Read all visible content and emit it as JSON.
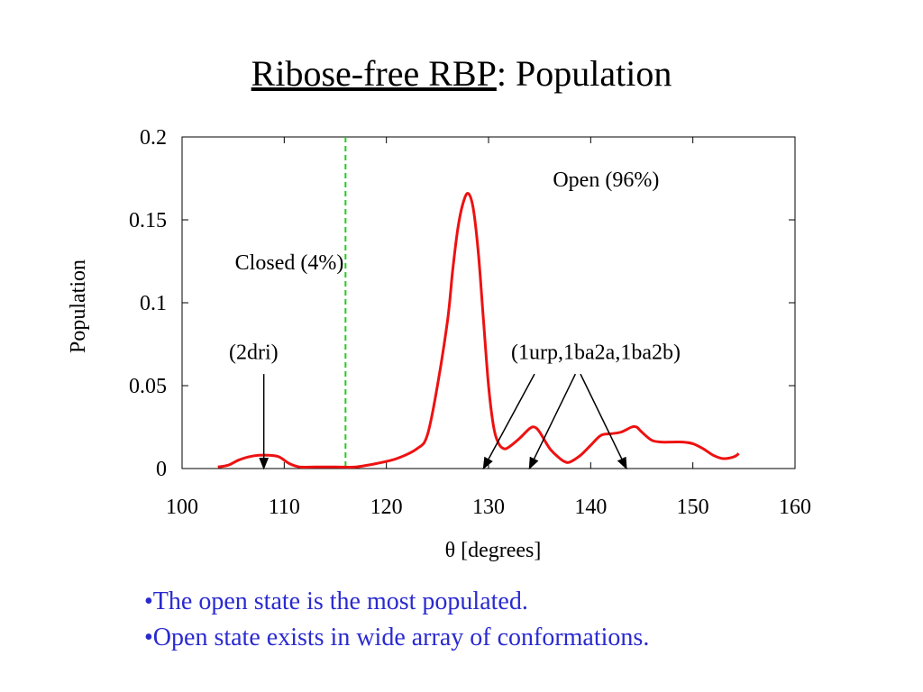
{
  "slide": {
    "title_underlined": "Ribose-free RBP",
    "title_rest": ": Population",
    "bullets": [
      "•The open state is the most populated.",
      "•Open state exists in wide array of conformations."
    ]
  },
  "colors": {
    "curve": "#ee1111",
    "threshold": "#22cc22",
    "bullet_text": "#2a2ad0"
  },
  "chart_data": {
    "type": "line",
    "xlabel": "θ [degrees]",
    "ylabel": "Population",
    "xlim": [
      100,
      160
    ],
    "ylim": [
      0,
      0.2
    ],
    "xticks": [
      100,
      110,
      120,
      130,
      140,
      150,
      160
    ],
    "yticks": [
      0,
      0.05,
      0.1,
      0.15,
      0.2
    ],
    "ytick_labels": [
      "0",
      "0.05",
      "0.1",
      "0.15",
      "0.2"
    ],
    "grid": false,
    "series": [
      {
        "x": [
          103.5,
          104.5,
          105.5,
          106.5,
          107.5,
          108.5,
          109.5,
          110.5,
          111.5,
          113,
          115,
          117,
          119,
          121,
          123,
          124,
          125,
          126,
          126.5,
          127,
          127.5,
          128,
          128.5,
          129,
          129.5,
          130,
          130.5,
          131,
          131.5,
          132,
          133,
          134,
          134.5,
          135,
          136,
          137,
          137.5,
          138,
          139,
          140,
          141,
          142,
          143,
          144,
          144.5,
          145,
          146,
          147,
          148,
          149,
          150,
          151,
          152,
          153,
          154,
          154.5
        ],
        "y": [
          0.001,
          0.002,
          0.005,
          0.007,
          0.008,
          0.008,
          0.007,
          0.003,
          0.001,
          0.001,
          0.001,
          0.001,
          0.003,
          0.006,
          0.012,
          0.02,
          0.05,
          0.09,
          0.12,
          0.145,
          0.16,
          0.166,
          0.157,
          0.13,
          0.09,
          0.05,
          0.025,
          0.015,
          0.012,
          0.013,
          0.018,
          0.024,
          0.025,
          0.022,
          0.012,
          0.006,
          0.004,
          0.004,
          0.008,
          0.014,
          0.02,
          0.021,
          0.022,
          0.025,
          0.025,
          0.022,
          0.017,
          0.016,
          0.016,
          0.016,
          0.015,
          0.012,
          0.008,
          0.006,
          0.007,
          0.009
        ]
      }
    ],
    "threshold_x": 116,
    "annotations": [
      {
        "text": "Open (96%)",
        "x": 141.5,
        "y": 0.17
      },
      {
        "text": "Closed (4%)",
        "x": 110.5,
        "y": 0.12
      },
      {
        "text": "(2dri)",
        "x": 107,
        "y": 0.066
      },
      {
        "text": "(1urp,1ba2a,1ba2b)",
        "x": 140.5,
        "y": 0.066
      }
    ],
    "arrows": [
      {
        "from": [
          108,
          0.057
        ],
        "to": [
          108,
          0.0
        ]
      },
      {
        "from": [
          134.5,
          0.057
        ],
        "to": [
          129.5,
          0.0
        ]
      },
      {
        "from": [
          138.5,
          0.057
        ],
        "to": [
          134,
          0.0
        ]
      },
      {
        "from": [
          139,
          0.057
        ],
        "to": [
          143.5,
          0.0
        ]
      }
    ]
  }
}
